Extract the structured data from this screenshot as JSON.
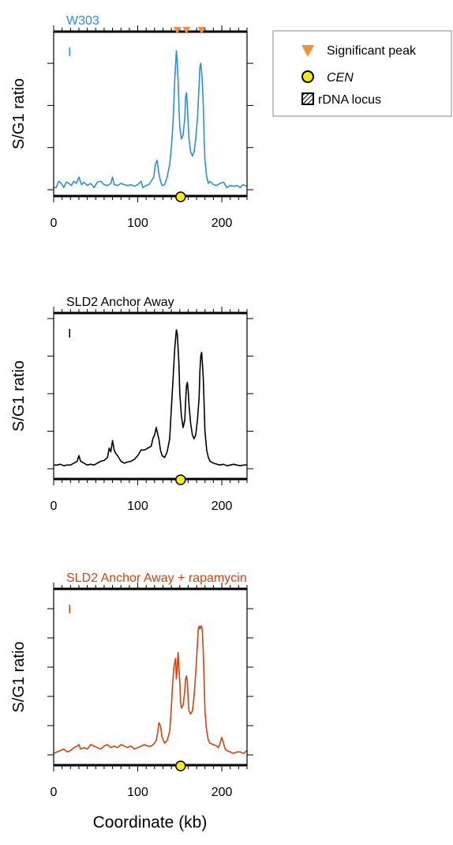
{
  "legend": {
    "items": [
      {
        "label": "Significant peak",
        "marker": "triangle-down",
        "color": "#f0913a"
      },
      {
        "label": "CEN",
        "marker": "circle",
        "color": "#f5ea14",
        "italic": true
      },
      {
        "label": "rDNA locus",
        "marker": "hatched-square",
        "color": "#000000"
      }
    ]
  },
  "shared": {
    "xlabel": "Coordinate (kb)",
    "ylabel": "S/G1 ratio",
    "chromosome_label": "I",
    "cen_position_kb": 151
  },
  "chart_data": [
    {
      "type": "line",
      "title": "W303",
      "color": "#2b8fdc",
      "xlabel": "Coordinate (kb)",
      "ylabel": "S/G1 ratio",
      "xlim": [
        0,
        230
      ],
      "ylim": [
        0,
        4.1
      ],
      "xticks": [
        0,
        100,
        200
      ],
      "yticks": [
        0,
        1,
        2,
        3,
        4
      ],
      "peaks_kb": [
        147,
        158,
        176
      ],
      "x": [
        0,
        3,
        6,
        9,
        12,
        15,
        18,
        21,
        24,
        27,
        30,
        33,
        36,
        40,
        44,
        48,
        52,
        56,
        60,
        64,
        68,
        70,
        72,
        76,
        80,
        84,
        88,
        92,
        96,
        100,
        104,
        106,
        108,
        110,
        113,
        116,
        119,
        121,
        123,
        125,
        127,
        129,
        132,
        135,
        138,
        140,
        142,
        144,
        146,
        147,
        148,
        149,
        150,
        152,
        154,
        156,
        157,
        158,
        159,
        160,
        161,
        163,
        165,
        167,
        169,
        171,
        173,
        174,
        175,
        176,
        177,
        178,
        179,
        180,
        182,
        184,
        186,
        190,
        194,
        198,
        202,
        206,
        210,
        214,
        218,
        222,
        225,
        228,
        230
      ],
      "y": [
        0.05,
        0.05,
        0.2,
        0.15,
        0.05,
        0.18,
        0.15,
        0.1,
        0.2,
        0.15,
        0.3,
        0.12,
        0.18,
        0.1,
        0.15,
        0.05,
        0.18,
        0.2,
        0.12,
        0.1,
        0.15,
        0.3,
        0.12,
        0.1,
        0.15,
        0.12,
        0.1,
        0.12,
        0.08,
        0.12,
        0.2,
        0.05,
        0.08,
        0.1,
        0.12,
        0.2,
        0.3,
        0.6,
        0.7,
        0.4,
        0.2,
        0.1,
        0.12,
        0.3,
        0.6,
        1.0,
        1.6,
        2.6,
        3.3,
        3.0,
        2.6,
        2.0,
        1.5,
        1.2,
        1.3,
        1.7,
        2.2,
        2.3,
        2.0,
        1.6,
        1.2,
        0.9,
        0.8,
        0.9,
        1.2,
        1.7,
        2.5,
        2.9,
        3.0,
        2.8,
        2.5,
        2.0,
        1.2,
        0.7,
        0.3,
        0.15,
        0.2,
        0.12,
        0.1,
        0.15,
        0.18,
        0.05,
        0.1,
        0.08,
        0.1,
        0.05,
        0.12,
        0.1,
        0.08
      ]
    },
    {
      "type": "line",
      "title": "SLD2 Anchor Away",
      "color": "#000000",
      "xlabel": "Coordinate (kb)",
      "ylabel": "S/G1 ratio",
      "xlim": [
        0,
        230
      ],
      "ylim": [
        0,
        4.1
      ],
      "xticks": [
        0,
        100,
        200
      ],
      "yticks": [
        0,
        1,
        2,
        3,
        4
      ],
      "x": [
        0,
        4,
        8,
        12,
        16,
        20,
        24,
        28,
        30,
        32,
        36,
        40,
        44,
        48,
        52,
        56,
        60,
        64,
        66,
        68,
        70,
        72,
        74,
        76,
        80,
        84,
        88,
        92,
        96,
        100,
        104,
        108,
        112,
        116,
        118,
        120,
        122,
        124,
        125,
        127,
        129,
        132,
        135,
        138,
        140,
        142,
        144,
        146,
        147,
        148,
        149,
        150,
        152,
        154,
        156,
        157,
        158,
        159,
        160,
        161,
        163,
        165,
        167,
        169,
        171,
        173,
        174,
        175,
        176,
        177,
        178,
        179,
        180,
        182,
        184,
        186,
        190,
        194,
        198,
        202,
        206,
        210,
        214,
        218,
        222,
        226,
        230
      ],
      "y": [
        0.1,
        0.1,
        0.12,
        0.08,
        0.1,
        0.1,
        0.15,
        0.2,
        0.35,
        0.2,
        0.15,
        0.1,
        0.12,
        0.1,
        0.15,
        0.2,
        0.22,
        0.3,
        0.55,
        0.45,
        0.75,
        0.5,
        0.4,
        0.35,
        0.2,
        0.15,
        0.18,
        0.2,
        0.25,
        0.35,
        0.5,
        0.5,
        0.55,
        0.6,
        0.8,
        0.9,
        1.1,
        0.9,
        0.8,
        0.5,
        0.35,
        0.3,
        0.45,
        0.8,
        1.6,
        2.4,
        3.2,
        3.7,
        3.6,
        3.2,
        2.8,
        2.0,
        1.4,
        1.1,
        1.3,
        1.8,
        2.2,
        2.3,
        2.1,
        1.7,
        1.2,
        0.9,
        0.8,
        0.9,
        1.3,
        1.9,
        2.6,
        3.0,
        3.1,
        2.8,
        2.4,
        1.7,
        1.0,
        0.5,
        0.3,
        0.2,
        0.15,
        0.12,
        0.1,
        0.12,
        0.08,
        0.1,
        0.12,
        0.1,
        0.08,
        0.1,
        0.1
      ]
    },
    {
      "type": "line",
      "title": "SLD2 Anchor Away + rapamycin",
      "color": "#cf4410",
      "xlabel": "Coordinate (kb)",
      "ylabel": "S/G1 ratio",
      "xlim": [
        0,
        230
      ],
      "ylim": [
        0,
        5.3
      ],
      "xticks": [
        0,
        100,
        200
      ],
      "yticks": [
        0,
        1,
        2,
        3,
        4,
        5
      ],
      "x": [
        0,
        4,
        8,
        12,
        16,
        20,
        24,
        28,
        30,
        32,
        36,
        40,
        44,
        48,
        52,
        56,
        60,
        64,
        68,
        72,
        76,
        80,
        84,
        88,
        92,
        96,
        100,
        104,
        108,
        112,
        116,
        118,
        120,
        122,
        124,
        125,
        127,
        129,
        132,
        135,
        138,
        140,
        141,
        143,
        145,
        146,
        147,
        148,
        149,
        150,
        151,
        152,
        154,
        156,
        157,
        158,
        159,
        160,
        161,
        163,
        165,
        167,
        169,
        171,
        172,
        173,
        174,
        175,
        176,
        177,
        178,
        179,
        180,
        182,
        184,
        186,
        190,
        194,
        196,
        198,
        200,
        202,
        204,
        206,
        210,
        214,
        218,
        222,
        226,
        228,
        230
      ],
      "y": [
        0.05,
        0.1,
        0.15,
        0.2,
        0.1,
        0.15,
        0.25,
        0.3,
        0.35,
        0.2,
        0.25,
        0.2,
        0.35,
        0.3,
        0.25,
        0.2,
        0.3,
        0.35,
        0.25,
        0.3,
        0.25,
        0.35,
        0.3,
        0.25,
        0.3,
        0.2,
        0.25,
        0.3,
        0.35,
        0.3,
        0.3,
        0.35,
        0.4,
        0.5,
        0.8,
        1.1,
        1.0,
        0.6,
        0.4,
        0.5,
        0.8,
        1.6,
        2.2,
        3.0,
        3.3,
        2.6,
        3.0,
        3.5,
        3.0,
        2.5,
        1.8,
        1.6,
        1.7,
        2.2,
        2.6,
        2.7,
        2.5,
        1.9,
        1.5,
        1.4,
        1.5,
        2.0,
        2.8,
        3.8,
        4.3,
        4.4,
        4.3,
        4.4,
        4.4,
        4.2,
        3.5,
        2.5,
        1.5,
        0.8,
        0.5,
        0.4,
        0.35,
        0.3,
        0.25,
        0.4,
        0.6,
        0.4,
        0.2,
        0.15,
        0.1,
        0.05,
        0.1,
        0.1,
        0.05,
        0.1,
        0.15
      ]
    }
  ]
}
